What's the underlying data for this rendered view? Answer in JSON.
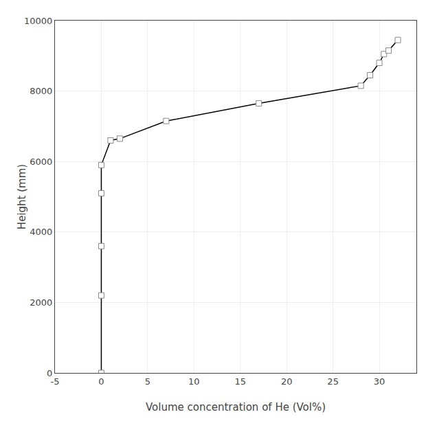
{
  "chart_data": {
    "type": "line",
    "x": [
      0,
      0,
      0,
      0,
      0,
      1.0,
      2.0,
      7.0,
      17.0,
      28.0,
      29.0,
      30.0,
      30.5,
      31.0,
      32.0
    ],
    "values": [
      0,
      2200,
      3600,
      5100,
      5900,
      6600,
      6650,
      7150,
      7650,
      8150,
      8450,
      8800,
      9050,
      9150,
      9450
    ],
    "xlabel": "Volume concentration of He (Vol%)",
    "ylabel": "Height (mm)",
    "xlim": [
      -5,
      34
    ],
    "ylim": [
      0,
      10000
    ],
    "xticks": [
      -5,
      0,
      5,
      10,
      15,
      20,
      25,
      30
    ],
    "yticks": [
      0,
      2000,
      4000,
      6000,
      8000,
      10000
    ],
    "grid": true,
    "color": "#000000",
    "marker": "square"
  }
}
